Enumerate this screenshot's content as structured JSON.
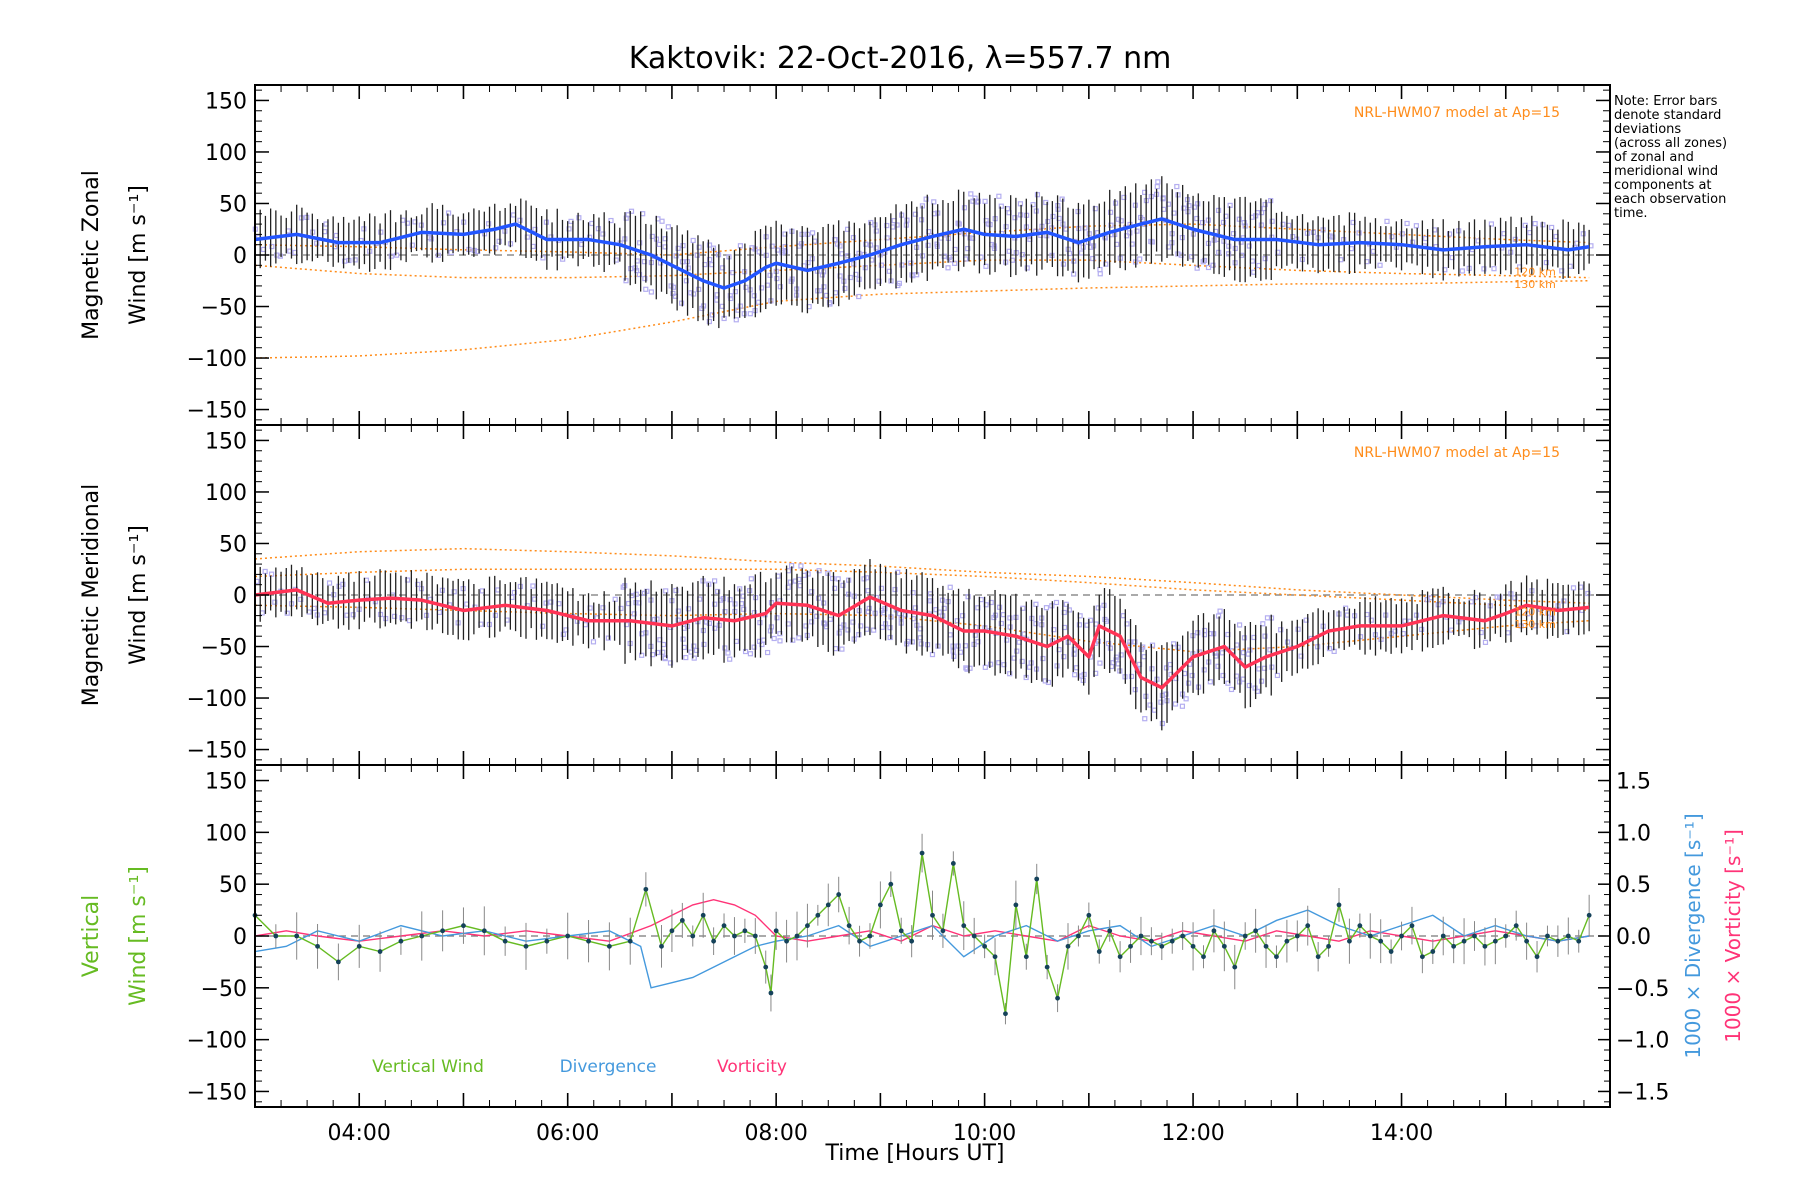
{
  "title": "Kaktovik: 22-Oct-2016, λ=557.7 nm",
  "note": [
    "Note: Error bars",
    "denote standard",
    "deviations",
    "(across all zones)",
    "of zonal and",
    "meridional wind",
    "components at",
    "each observation",
    "time."
  ],
  "colors": {
    "zonal": "#2255ff",
    "zonal_light": "#44aaff",
    "meridional": "#ff3355",
    "model": "#ff8c1a",
    "scatter": "#b4aef0",
    "errorbar": "#222222",
    "vertical": "#66bb22",
    "divergence": "#4499dd",
    "vorticity": "#ff3377"
  },
  "chart_data": [
    {
      "type": "line",
      "panel": "zonal",
      "ylabel": [
        "Magnetic Zonal",
        "Wind [m s⁻¹]"
      ],
      "ylim": [
        -165,
        165
      ],
      "yticks": [
        "150",
        "100",
        "50",
        "0",
        "−50",
        "−100",
        "−150"
      ],
      "model_label": "NRL-HWM07 model at Ap=15",
      "model_line_labels": [
        "120 km",
        "130 km"
      ],
      "series": [
        {
          "role": "mean",
          "x": [
            3.0,
            3.4,
            3.8,
            4.2,
            4.6,
            5.0,
            5.3,
            5.5,
            5.8,
            6.2,
            6.5,
            6.8,
            7.0,
            7.3,
            7.5,
            7.7,
            7.9,
            8.0,
            8.3,
            8.6,
            8.9,
            9.2,
            9.5,
            9.8,
            10.0,
            10.3,
            10.6,
            10.9,
            11.2,
            11.5,
            11.7,
            12.0,
            12.4,
            12.8,
            13.2,
            13.6,
            14.0,
            14.4,
            14.8,
            15.2,
            15.6,
            15.8
          ],
          "y": [
            15,
            20,
            12,
            12,
            22,
            20,
            25,
            30,
            15,
            15,
            10,
            0,
            -10,
            -25,
            -32,
            -25,
            -12,
            -8,
            -15,
            -8,
            0,
            10,
            18,
            25,
            20,
            18,
            22,
            12,
            22,
            30,
            35,
            25,
            15,
            15,
            10,
            12,
            10,
            5,
            8,
            10,
            5,
            8
          ]
        },
        {
          "role": "model-1",
          "x": [
            3.0,
            4.0,
            5.0,
            6.0,
            7.0,
            8.0,
            9.0,
            10.0,
            11.0,
            12.0,
            13.0,
            14.0,
            15.0,
            15.8
          ],
          "y": [
            -100,
            -98,
            -92,
            -82,
            -65,
            -45,
            -38,
            -35,
            -32,
            -30,
            -28,
            -28,
            -26,
            -25
          ]
        },
        {
          "role": "model-2",
          "x": [
            3.0,
            4.0,
            5.0,
            6.0,
            7.0,
            8.0,
            9.0,
            10.0,
            11.0,
            12.0,
            13.0,
            14.0,
            15.0,
            15.8
          ],
          "y": [
            -10,
            -18,
            -22,
            -22,
            -20,
            -15,
            -10,
            -5,
            -5,
            -10,
            -15,
            -18,
            -20,
            -22
          ]
        },
        {
          "role": "model-3",
          "x": [
            3.0,
            4.0,
            5.0,
            6.0,
            7.0,
            8.0,
            9.0,
            10.0,
            11.0,
            12.0,
            13.0,
            14.0,
            15.0,
            15.8
          ],
          "y": [
            10,
            8,
            5,
            3,
            0,
            8,
            15,
            22,
            28,
            30,
            25,
            20,
            15,
            12
          ]
        }
      ]
    },
    {
      "type": "line",
      "panel": "meridional",
      "ylabel": [
        "Magnetic Meridional",
        "Wind [m s⁻¹]"
      ],
      "ylim": [
        -165,
        165
      ],
      "yticks": [
        "150",
        "100",
        "50",
        "0",
        "−50",
        "−100",
        "−150"
      ],
      "model_label": "NRL-HWM07 model at Ap=15",
      "model_line_labels": [
        "120 km",
        "130 km"
      ],
      "series": [
        {
          "role": "mean",
          "x": [
            3.0,
            3.4,
            3.7,
            4.0,
            4.3,
            4.6,
            5.0,
            5.4,
            5.8,
            6.2,
            6.6,
            7.0,
            7.3,
            7.6,
            7.9,
            8.0,
            8.3,
            8.6,
            8.9,
            9.2,
            9.5,
            9.8,
            10.0,
            10.3,
            10.6,
            10.8,
            11.0,
            11.1,
            11.3,
            11.5,
            11.7,
            12.0,
            12.3,
            12.5,
            12.7,
            13.0,
            13.3,
            13.6,
            14.0,
            14.4,
            14.8,
            15.0,
            15.2,
            15.5,
            15.8
          ],
          "y": [
            0,
            5,
            -8,
            -5,
            -3,
            -5,
            -15,
            -10,
            -15,
            -25,
            -25,
            -30,
            -22,
            -25,
            -18,
            -8,
            -10,
            -20,
            -2,
            -15,
            -20,
            -35,
            -35,
            -40,
            -50,
            -40,
            -60,
            -30,
            -40,
            -80,
            -90,
            -60,
            -50,
            -70,
            -60,
            -50,
            -35,
            -30,
            -30,
            -20,
            -25,
            -18,
            -10,
            -15,
            -12
          ]
        },
        {
          "role": "model-1",
          "x": [
            3.0,
            4.0,
            5.0,
            6.0,
            7.0,
            8.0,
            9.0,
            10.0,
            11.0,
            12.0,
            13.0,
            14.0,
            15.0,
            15.8
          ],
          "y": [
            35,
            42,
            45,
            42,
            38,
            32,
            28,
            22,
            18,
            12,
            5,
            0,
            -5,
            -8
          ]
        },
        {
          "role": "model-2",
          "x": [
            3.0,
            4.0,
            5.0,
            6.0,
            7.0,
            8.0,
            9.0,
            10.0,
            11.0,
            12.0,
            13.0,
            14.0,
            15.0,
            15.8
          ],
          "y": [
            18,
            22,
            25,
            25,
            25,
            25,
            22,
            18,
            12,
            5,
            0,
            -5,
            -10,
            -15
          ]
        },
        {
          "role": "model-3",
          "x": [
            3.0,
            4.0,
            5.0,
            6.0,
            7.0,
            8.0,
            9.0,
            10.0,
            11.0,
            12.0,
            13.0,
            14.0,
            15.0,
            15.8
          ],
          "y": [
            -10,
            -12,
            -15,
            -18,
            -20,
            -18,
            -20,
            -30,
            -45,
            -55,
            -50,
            -40,
            -30,
            -25
          ]
        }
      ]
    },
    {
      "type": "line",
      "panel": "vertical",
      "ylabel": [
        "Vertical",
        "Wind [m s⁻¹]"
      ],
      "ylim": [
        -165,
        165
      ],
      "yticks": [
        "150",
        "100",
        "50",
        "0",
        "−50",
        "−100",
        "−150"
      ],
      "y2label": [
        "1000 × Divergence [s⁻¹]",
        "1000 × Vorticity [s⁻¹]"
      ],
      "y2lim": [
        -1.65,
        1.65
      ],
      "y2ticks": [
        "1.5",
        "1.0",
        "0.5",
        "0.0",
        "−0.5",
        "−1.0",
        "−1.5"
      ],
      "legend": [
        "Vertical Wind",
        "Divergence",
        "Vorticity"
      ],
      "series": [
        {
          "name": "Vertical Wind",
          "x": [
            3.0,
            3.2,
            3.4,
            3.6,
            3.8,
            4.0,
            4.2,
            4.4,
            4.6,
            4.8,
            5.0,
            5.2,
            5.4,
            5.6,
            5.8,
            6.0,
            6.2,
            6.4,
            6.6,
            6.75,
            6.9,
            7.0,
            7.1,
            7.2,
            7.3,
            7.4,
            7.5,
            7.6,
            7.7,
            7.8,
            7.9,
            7.95,
            8.0,
            8.1,
            8.2,
            8.3,
            8.4,
            8.5,
            8.6,
            8.7,
            8.8,
            8.9,
            9.0,
            9.1,
            9.2,
            9.3,
            9.4,
            9.5,
            9.6,
            9.7,
            9.8,
            9.9,
            10.0,
            10.1,
            10.2,
            10.3,
            10.4,
            10.5,
            10.6,
            10.7,
            10.8,
            10.9,
            11.0,
            11.1,
            11.2,
            11.3,
            11.4,
            11.5,
            11.6,
            11.7,
            11.8,
            11.9,
            12.0,
            12.1,
            12.2,
            12.3,
            12.4,
            12.5,
            12.6,
            12.7,
            12.8,
            12.9,
            13.0,
            13.1,
            13.2,
            13.3,
            13.4,
            13.5,
            13.6,
            13.7,
            13.8,
            13.9,
            14.0,
            14.1,
            14.2,
            14.3,
            14.4,
            14.5,
            14.6,
            14.7,
            14.8,
            14.9,
            15.0,
            15.1,
            15.2,
            15.3,
            15.4,
            15.5,
            15.6,
            15.7,
            15.8
          ],
          "y": [
            20,
            0,
            0,
            -10,
            -25,
            -10,
            -15,
            -5,
            0,
            5,
            10,
            5,
            -5,
            -10,
            -5,
            0,
            -5,
            -10,
            -5,
            45,
            -10,
            5,
            15,
            0,
            20,
            -5,
            10,
            0,
            5,
            0,
            -30,
            -55,
            5,
            -5,
            0,
            10,
            20,
            30,
            40,
            10,
            -5,
            0,
            30,
            50,
            5,
            -5,
            80,
            20,
            5,
            70,
            10,
            0,
            -10,
            -20,
            -75,
            30,
            -20,
            55,
            -30,
            -60,
            -10,
            0,
            20,
            -15,
            5,
            -20,
            -10,
            0,
            -5,
            -10,
            -5,
            0,
            -10,
            -20,
            5,
            -10,
            -30,
            0,
            5,
            -10,
            -20,
            -5,
            0,
            10,
            -20,
            -10,
            30,
            -5,
            10,
            0,
            -5,
            -15,
            0,
            10,
            -20,
            -15,
            0,
            -10,
            -5,
            0,
            -10,
            -5,
            0,
            10,
            -5,
            -20,
            0,
            -5,
            0,
            -5,
            20
          ]
        },
        {
          "name": "Divergence",
          "x": [
            3.0,
            3.3,
            3.6,
            4.0,
            4.4,
            4.8,
            5.2,
            5.6,
            6.0,
            6.4,
            6.7,
            6.8,
            7.0,
            7.2,
            7.4,
            7.6,
            7.8,
            8.0,
            8.3,
            8.6,
            8.9,
            9.2,
            9.5,
            9.8,
            10.1,
            10.4,
            10.7,
            11.0,
            11.3,
            11.6,
            11.9,
            12.2,
            12.5,
            12.8,
            13.1,
            13.4,
            13.7,
            14.0,
            14.3,
            14.6,
            14.9,
            15.2,
            15.5,
            15.8
          ],
          "y": [
            -0.15,
            -0.1,
            0.05,
            -0.05,
            0.1,
            0.0,
            0.05,
            -0.05,
            0.0,
            0.05,
            -0.1,
            -0.5,
            -0.45,
            -0.4,
            -0.3,
            -0.2,
            -0.1,
            -0.05,
            0.0,
            0.1,
            -0.1,
            0.0,
            0.1,
            -0.2,
            0.0,
            0.1,
            -0.05,
            0.05,
            0.1,
            -0.1,
            0.0,
            0.1,
            0.0,
            0.15,
            0.25,
            0.1,
            0.0,
            0.1,
            0.2,
            0.0,
            0.1,
            0.0,
            -0.05,
            0.0
          ]
        },
        {
          "name": "Vorticity",
          "x": [
            3.0,
            3.3,
            3.6,
            4.0,
            4.4,
            4.8,
            5.2,
            5.6,
            6.0,
            6.4,
            6.8,
            7.0,
            7.2,
            7.4,
            7.6,
            7.8,
            8.0,
            8.3,
            8.6,
            8.9,
            9.2,
            9.5,
            9.8,
            10.1,
            10.4,
            10.7,
            11.0,
            11.3,
            11.6,
            11.9,
            12.2,
            12.5,
            12.8,
            13.1,
            13.4,
            13.7,
            14.0,
            14.3,
            14.6,
            14.9,
            15.2,
            15.5,
            15.8
          ],
          "y": [
            0.0,
            0.05,
            0.0,
            -0.05,
            0.0,
            0.05,
            0.0,
            0.05,
            0.0,
            -0.05,
            0.1,
            0.2,
            0.3,
            0.35,
            0.3,
            0.2,
            0.0,
            -0.05,
            0.0,
            0.05,
            -0.05,
            0.1,
            0.0,
            0.05,
            0.0,
            -0.05,
            0.1,
            0.0,
            -0.05,
            0.05,
            0.0,
            -0.05,
            0.05,
            0.0,
            -0.05,
            0.05,
            0.0,
            -0.05,
            0.0,
            0.05,
            0.0,
            -0.05,
            0.0
          ]
        }
      ]
    }
  ],
  "xaxis": {
    "label": "Time [Hours UT]",
    "range": [
      3.0,
      16.0
    ],
    "ticks": [
      4,
      6,
      8,
      10,
      12,
      14
    ],
    "tick_labels": [
      "04:00",
      "06:00",
      "08:00",
      "10:00",
      "12:00",
      "14:00"
    ]
  }
}
